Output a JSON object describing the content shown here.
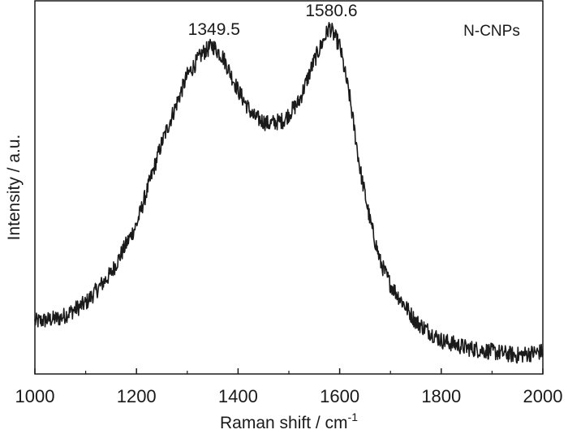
{
  "chart_data": {
    "type": "line",
    "title": "",
    "xlabel": "Raman shift / cm",
    "xlabel_sup": "-1",
    "ylabel": "Intensity / a.u.",
    "xlim": [
      1000,
      2000
    ],
    "ylim": [
      0,
      1
    ],
    "x_ticks": [
      1000,
      1200,
      1400,
      1600,
      1800,
      2000
    ],
    "x_tick_labels": [
      "1000",
      "1200",
      "1400",
      "1600",
      "1800",
      "2000"
    ],
    "y_ticks_shown": false,
    "grid": false,
    "legend": {
      "text": "N-CNPs",
      "placement": "top-right"
    },
    "series": [
      {
        "color": "#1a1a1a",
        "x": [
          1000,
          1050,
          1100,
          1150,
          1200,
          1250,
          1300,
          1330,
          1350,
          1370,
          1400,
          1430,
          1460,
          1490,
          1520,
          1550,
          1580,
          1600,
          1620,
          1640,
          1660,
          1680,
          1700,
          1750,
          1800,
          1850,
          1900,
          1950,
          2000
        ],
        "values": [
          0.14,
          0.15,
          0.19,
          0.27,
          0.4,
          0.62,
          0.8,
          0.86,
          0.88,
          0.85,
          0.76,
          0.69,
          0.67,
          0.68,
          0.73,
          0.84,
          0.93,
          0.88,
          0.74,
          0.55,
          0.41,
          0.3,
          0.24,
          0.14,
          0.09,
          0.07,
          0.06,
          0.05,
          0.06
        ]
      }
    ],
    "annotations": [
      {
        "text": "1349.5",
        "x": 1349.5,
        "y": 0.88
      },
      {
        "text": "1580.6",
        "x": 1580.6,
        "y": 0.93
      }
    ]
  }
}
